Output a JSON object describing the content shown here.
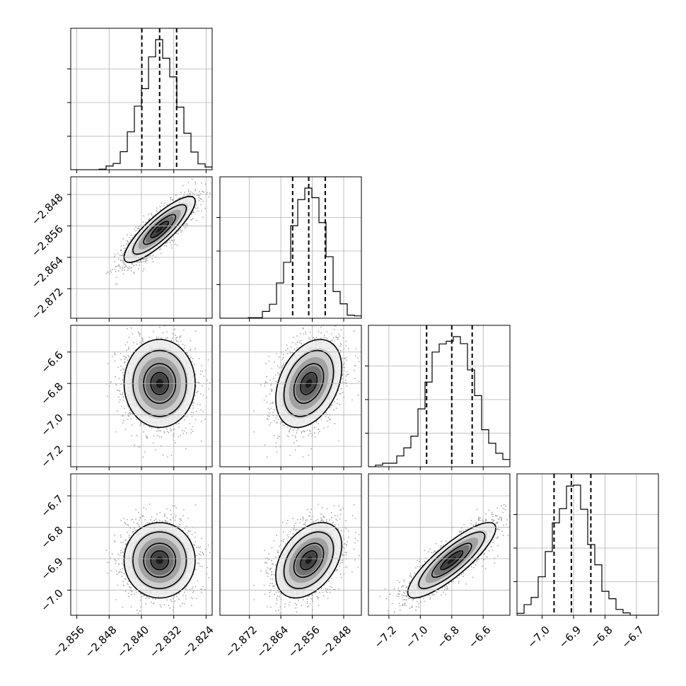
{
  "chart_data": {
    "type": "corner",
    "parameters": [
      {
        "range": [
          -2.8575,
          -2.8225
        ],
        "ticks": [
          -2.856,
          -2.848,
          -2.84,
          -2.832,
          -2.824
        ],
        "tick_labels": [
          "−2.856",
          "−2.848",
          "−2.840",
          "−2.832",
          "−2.824"
        ],
        "median": -2.8355,
        "q16": -2.8399,
        "q84": -2.8313,
        "mean": -2.8355,
        "sd": 0.0044
      },
      {
        "range": [
          -2.8795,
          -2.8435
        ],
        "ticks": [
          -2.872,
          -2.864,
          -2.856,
          -2.848
        ],
        "tick_labels": [
          "−2.872",
          "−2.864",
          "−2.856",
          "−2.848"
        ],
        "median": -2.8569,
        "q16": -2.861,
        "q84": -2.8527,
        "mean": -2.8569,
        "sd": 0.0042
      },
      {
        "range": [
          -7.33,
          -6.43
        ],
        "ticks": [
          -7.2,
          -7.0,
          -6.8,
          -6.6
        ],
        "tick_labels": [
          "−7.2",
          "−7.0",
          "−6.8",
          "−6.6"
        ],
        "median": -6.8,
        "q16": -6.96,
        "q84": -6.67,
        "mean": -6.8,
        "sd": 0.14
      },
      {
        "range": [
          -7.08,
          -6.63
        ],
        "ticks": [
          -7.0,
          -6.9,
          -6.8,
          -6.7
        ],
        "tick_labels": [
          "−7.0",
          "−6.9",
          "−6.8",
          "−6.7"
        ],
        "median": -6.907,
        "q16": -6.962,
        "q84": -6.845,
        "mean": -6.905,
        "sd": 0.06
      }
    ],
    "correlations": [
      {
        "pair": [
          0,
          1
        ],
        "r": 0.85
      },
      {
        "pair": [
          0,
          2
        ],
        "r": 0.0
      },
      {
        "pair": [
          1,
          2
        ],
        "r": 0.35
      },
      {
        "pair": [
          0,
          3
        ],
        "r": 0.0
      },
      {
        "pair": [
          1,
          3
        ],
        "r": 0.4
      },
      {
        "pair": [
          2,
          3
        ],
        "r": 0.85
      }
    ],
    "grid": true,
    "quantile_lines": [
      "q16",
      "median",
      "q84"
    ]
  }
}
